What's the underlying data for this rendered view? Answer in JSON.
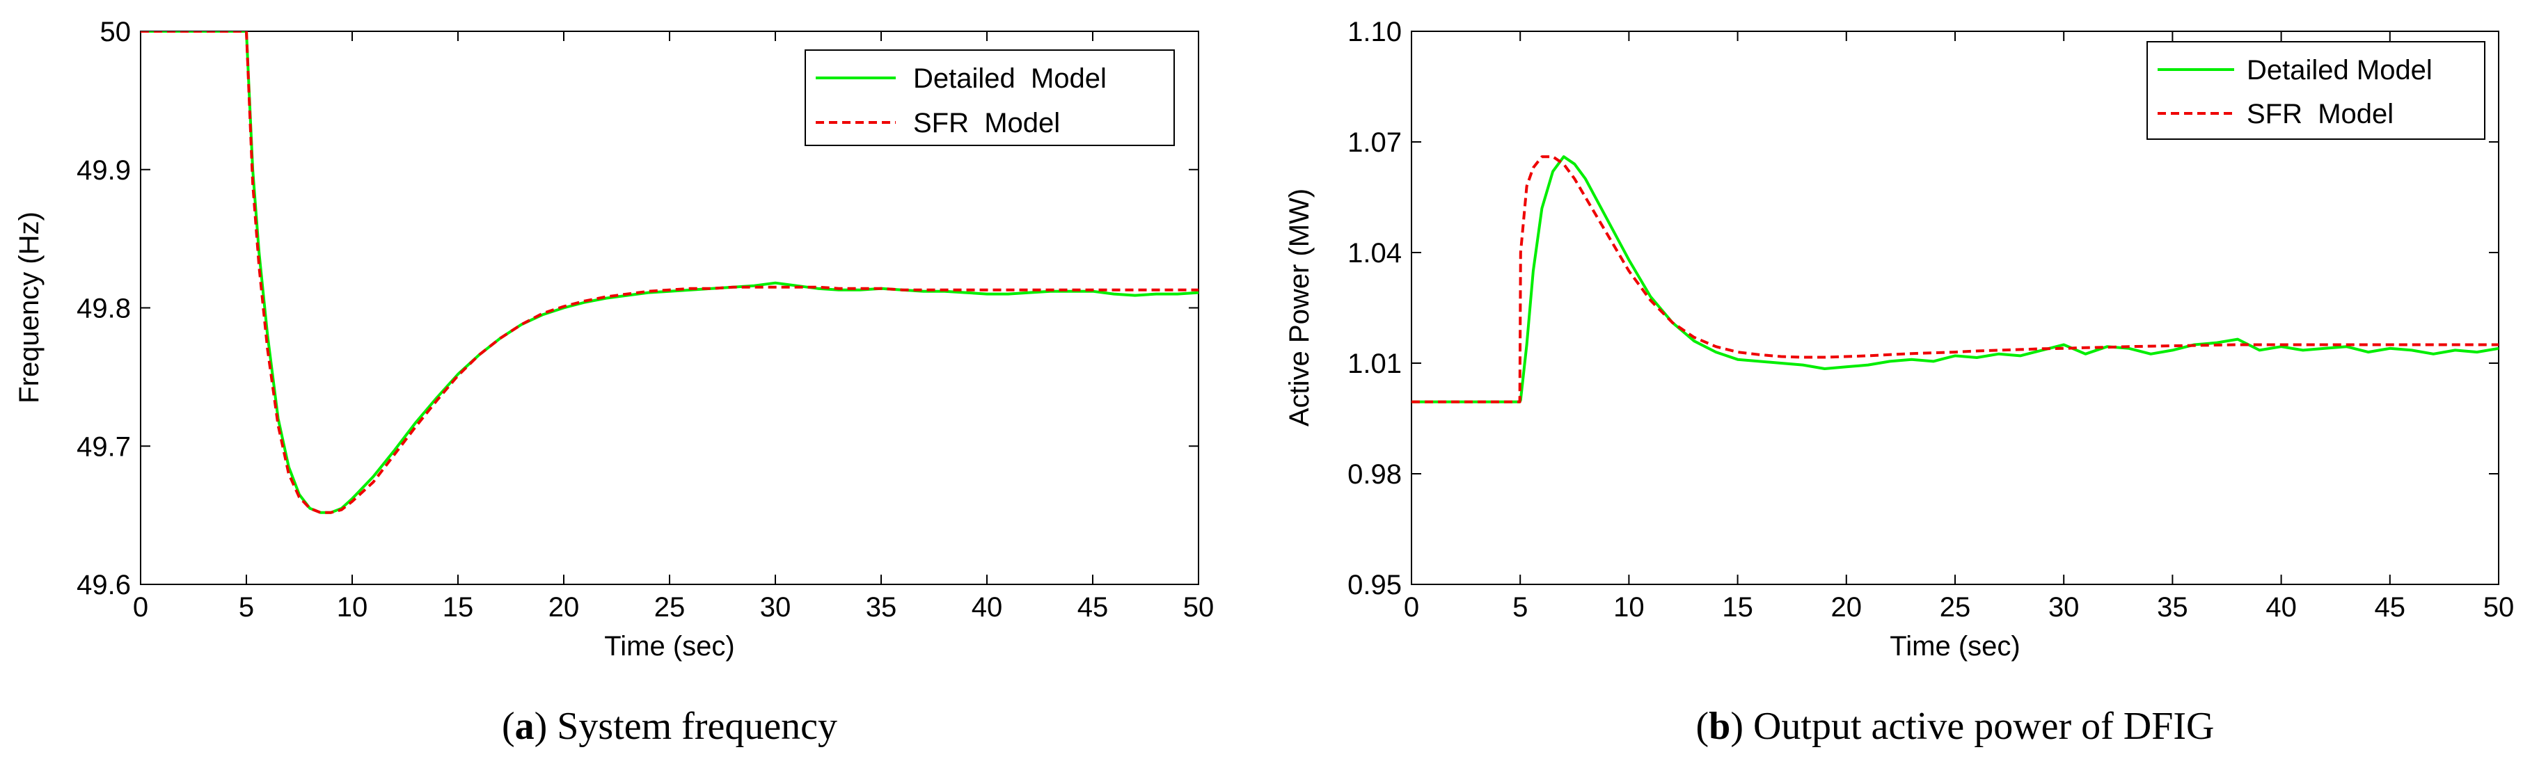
{
  "chart_data": [
    {
      "type": "line",
      "panel_letter": "a",
      "caption": "System frequency",
      "title": "",
      "xlabel": "Time (sec)",
      "ylabel": "Frequency (Hz)",
      "xlim": [
        0,
        50
      ],
      "ylim": [
        49.6,
        50
      ],
      "xticks": [
        "0",
        "5",
        "10",
        "15",
        "20",
        "25",
        "30",
        "35",
        "40",
        "45",
        "50"
      ],
      "yticks": [
        "49.6",
        "49.7",
        "49.8",
        "49.9",
        "50"
      ],
      "grid": false,
      "legend_position": "top-right",
      "x": [
        0,
        5,
        5.3,
        5.6,
        6,
        6.5,
        7,
        7.5,
        8,
        8.5,
        9,
        9.5,
        10,
        11,
        12,
        13,
        14,
        15,
        16,
        17,
        18,
        19,
        20,
        21,
        22,
        23,
        24,
        25,
        26,
        27,
        28,
        29,
        30,
        31,
        32,
        33,
        34,
        35,
        36,
        37,
        38,
        39,
        40,
        41,
        42,
        43,
        44,
        45,
        46,
        47,
        48,
        49,
        50
      ],
      "series": [
        {
          "name": "Detailed  Model",
          "color": "#00ee00",
          "style": "solid",
          "values": [
            50,
            50,
            49.9,
            49.84,
            49.78,
            49.72,
            49.685,
            49.665,
            49.655,
            49.652,
            49.652,
            49.655,
            49.662,
            49.678,
            49.697,
            49.717,
            49.735,
            49.752,
            49.766,
            49.778,
            49.788,
            49.795,
            49.8,
            49.804,
            49.807,
            49.809,
            49.811,
            49.812,
            49.813,
            49.814,
            49.815,
            49.816,
            49.818,
            49.816,
            49.814,
            49.813,
            49.813,
            49.814,
            49.813,
            49.812,
            49.812,
            49.811,
            49.81,
            49.81,
            49.811,
            49.812,
            49.812,
            49.812,
            49.81,
            49.809,
            49.81,
            49.81,
            49.811
          ]
        },
        {
          "name": "SFR  Model",
          "color": "#ee0000",
          "style": "dashed",
          "values": [
            50,
            50,
            49.89,
            49.83,
            49.77,
            49.715,
            49.68,
            49.663,
            49.655,
            49.652,
            49.652,
            49.654,
            49.66,
            49.674,
            49.694,
            49.714,
            49.733,
            49.751,
            49.766,
            49.778,
            49.788,
            49.796,
            49.801,
            49.805,
            49.808,
            49.81,
            49.812,
            49.813,
            49.814,
            49.814,
            49.815,
            49.815,
            49.815,
            49.815,
            49.815,
            49.814,
            49.814,
            49.814,
            49.813,
            49.813,
            49.813,
            49.813,
            49.813,
            49.813,
            49.813,
            49.813,
            49.813,
            49.813,
            49.813,
            49.813,
            49.813,
            49.813,
            49.813
          ]
        }
      ]
    },
    {
      "type": "line",
      "panel_letter": "b",
      "caption": "Output active power of DFIG",
      "title": "",
      "xlabel": "Time (sec)",
      "ylabel": "Active Power (MW)",
      "xlim": [
        0,
        50
      ],
      "ylim": [
        0.95,
        1.1
      ],
      "xticks": [
        "0",
        "5",
        "10",
        "15",
        "20",
        "25",
        "30",
        "35",
        "40",
        "45",
        "50"
      ],
      "yticks": [
        "0.95",
        "0.98",
        "1.01",
        "1.04",
        "1.07",
        "1.10"
      ],
      "grid": false,
      "legend_position": "top-right",
      "x": [
        0,
        4.98,
        5.02,
        5.3,
        5.6,
        6,
        6.5,
        7,
        7.5,
        8,
        9,
        10,
        11,
        12,
        13,
        14,
        15,
        16,
        17,
        18,
        19,
        20,
        21,
        22,
        23,
        24,
        25,
        26,
        27,
        28,
        29,
        30,
        31,
        32,
        33,
        34,
        35,
        36,
        37,
        38,
        39,
        40,
        41,
        42,
        43,
        44,
        45,
        46,
        47,
        48,
        49,
        50
      ],
      "series": [
        {
          "name": "Detailed Model",
          "color": "#00ee00",
          "style": "solid",
          "values": [
            0.9995,
            0.9995,
            1.0,
            1.015,
            1.035,
            1.052,
            1.062,
            1.066,
            1.064,
            1.06,
            1.049,
            1.038,
            1.028,
            1.021,
            1.016,
            1.013,
            1.011,
            1.0105,
            1.01,
            1.0095,
            1.0085,
            1.009,
            1.0095,
            1.0105,
            1.011,
            1.0105,
            1.012,
            1.0115,
            1.0125,
            1.012,
            1.0135,
            1.015,
            1.0125,
            1.0145,
            1.014,
            1.0125,
            1.0135,
            1.015,
            1.0155,
            1.0165,
            1.0135,
            1.0145,
            1.0135,
            1.014,
            1.0145,
            1.013,
            1.014,
            1.0135,
            1.0125,
            1.0135,
            1.013,
            1.014
          ]
        },
        {
          "name": "SFR  Model",
          "color": "#ee0000",
          "style": "dashed",
          "values": [
            0.9995,
            0.9995,
            1.04,
            1.058,
            1.063,
            1.066,
            1.066,
            1.064,
            1.06,
            1.055,
            1.045,
            1.035,
            1.027,
            1.021,
            1.017,
            1.0145,
            1.013,
            1.0123,
            1.0118,
            1.0116,
            1.0116,
            1.0118,
            1.012,
            1.0123,
            1.0126,
            1.0128,
            1.013,
            1.0133,
            1.0135,
            1.0137,
            1.0139,
            1.014,
            1.0142,
            1.0143,
            1.0145,
            1.0146,
            1.0147,
            1.0148,
            1.0149,
            1.015,
            1.015,
            1.015,
            1.015,
            1.015,
            1.015,
            1.015,
            1.015,
            1.015,
            1.015,
            1.015,
            1.015,
            1.015
          ]
        }
      ]
    }
  ]
}
